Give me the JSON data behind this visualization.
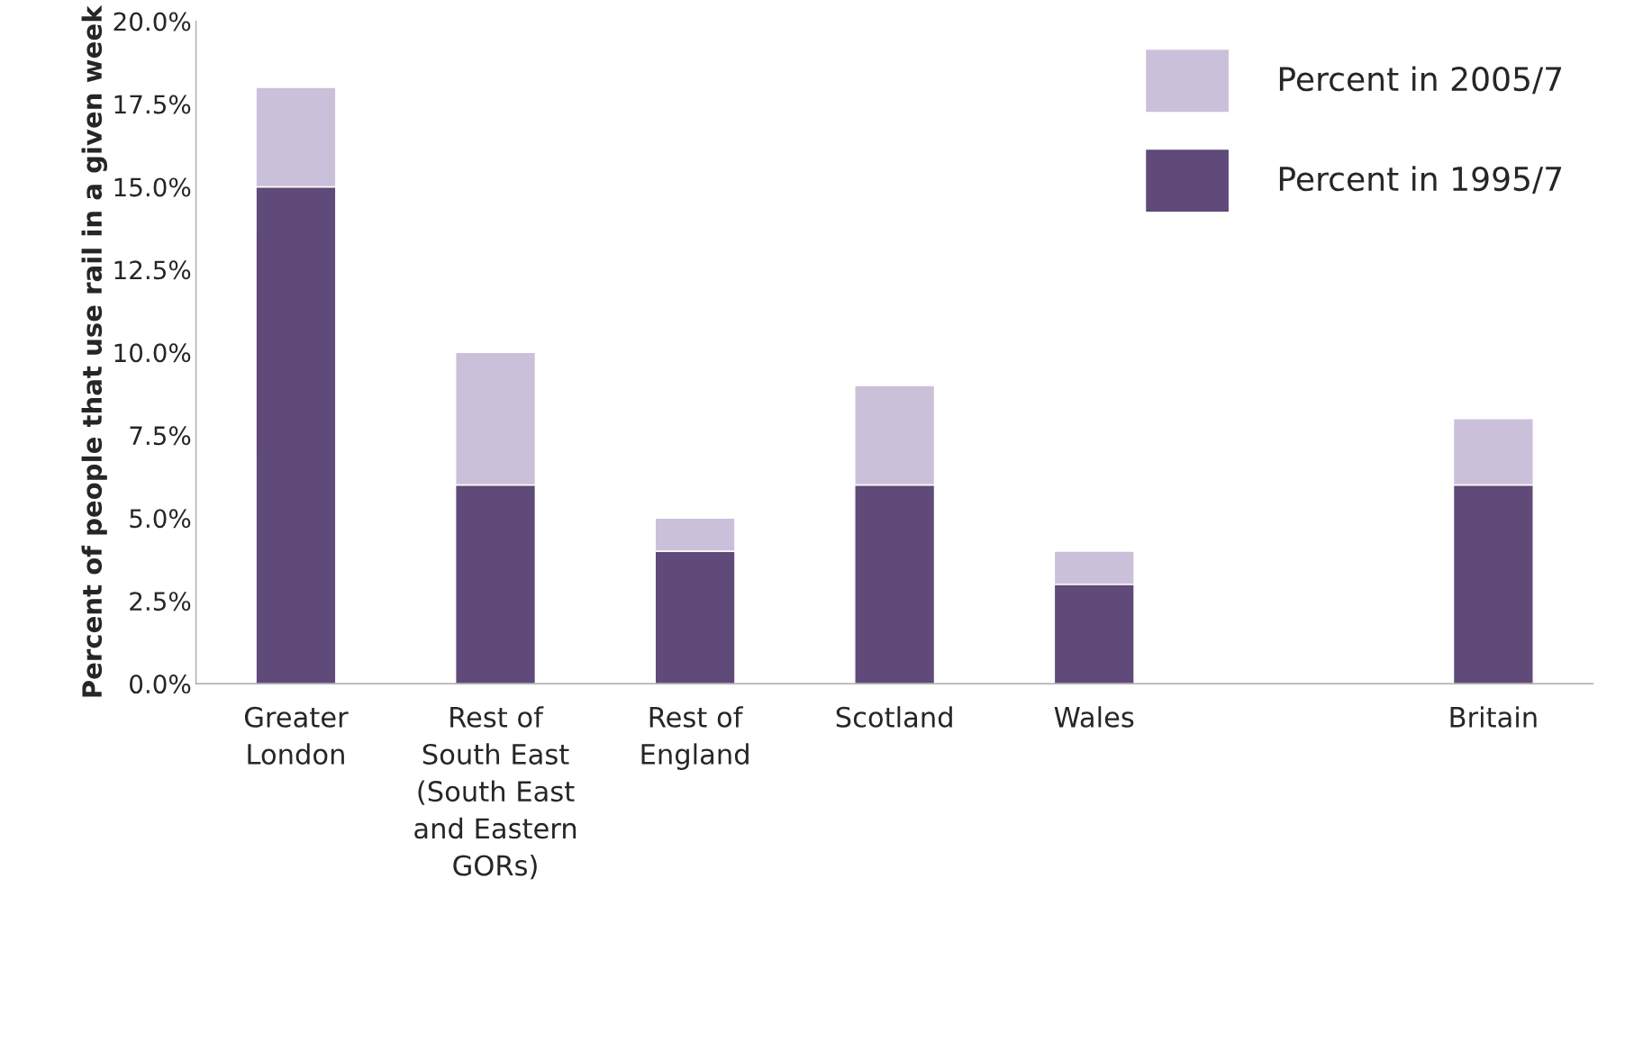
{
  "chart_data": {
    "type": "bar",
    "stacked": true,
    "ylabel": "Percent of people that use rail in a given week",
    "categories": [
      "Greater\nLondon",
      "Rest of\nSouth East\n(South East\nand Eastern\nGORs)",
      "Rest of\nEngland",
      "Scotland",
      "Wales",
      null,
      "Britain"
    ],
    "series": [
      {
        "name": "Percent in 1995/7",
        "color": "#5f4a79",
        "values": [
          15,
          6,
          4,
          6,
          3,
          null,
          6
        ]
      },
      {
        "name": "Percent in 2005/7",
        "color": "#cbc0da",
        "values": [
          3,
          4,
          1,
          3,
          1,
          null,
          2
        ]
      }
    ],
    "ylim": [
      0,
      20
    ],
    "yticks": [
      {
        "value": 0,
        "label": "0.0%"
      },
      {
        "value": 2.5,
        "label": "2.5%"
      },
      {
        "value": 5,
        "label": "5.0%"
      },
      {
        "value": 7.5,
        "label": "7.5%"
      },
      {
        "value": 10,
        "label": "10.0%"
      },
      {
        "value": 12.5,
        "label": "12.5%"
      },
      {
        "value": 15,
        "label": "15.0%"
      },
      {
        "value": 17.5,
        "label": "17.5%"
      },
      {
        "value": 20,
        "label": "20.0%"
      }
    ],
    "legend": "top right",
    "grid": false
  }
}
